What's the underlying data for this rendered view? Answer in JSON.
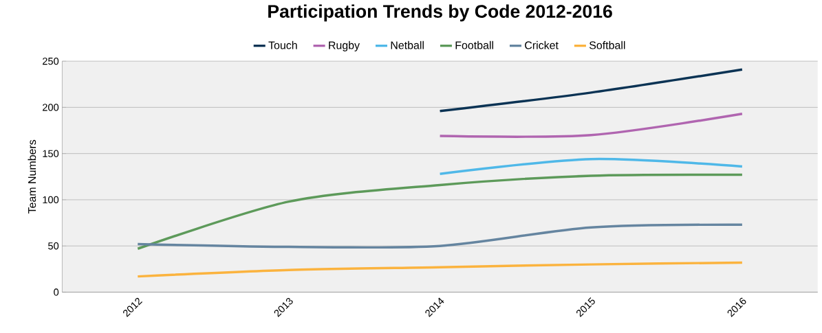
{
  "chart_data": {
    "type": "line",
    "title": "Participation Trends by Code 2012-2016",
    "ylabel": "Team Numbers",
    "categories": [
      "2012",
      "2013",
      "2014",
      "2015",
      "2016"
    ],
    "series": [
      {
        "name": "Touch",
        "color": "#0b3354",
        "values": [
          null,
          null,
          196,
          216,
          241
        ]
      },
      {
        "name": "Rugby",
        "color": "#b065b0",
        "values": [
          null,
          null,
          169,
          170,
          193
        ]
      },
      {
        "name": "Netball",
        "color": "#4fb8e8",
        "values": [
          null,
          null,
          128,
          144,
          136
        ]
      },
      {
        "name": "Football",
        "color": "#5d9a5a",
        "values": [
          47,
          98,
          116,
          126,
          127
        ]
      },
      {
        "name": "Cricket",
        "color": "#6585a0",
        "values": [
          52,
          49,
          50,
          70,
          73
        ]
      },
      {
        "name": "Softball",
        "color": "#fbb33e",
        "values": [
          17,
          24,
          27,
          30,
          32
        ]
      }
    ],
    "ylim": [
      0,
      250
    ],
    "yticks": [
      0,
      50,
      100,
      150,
      200,
      250
    ],
    "grid": "y",
    "legend": "top",
    "marker": "none",
    "line_style": "solid"
  }
}
